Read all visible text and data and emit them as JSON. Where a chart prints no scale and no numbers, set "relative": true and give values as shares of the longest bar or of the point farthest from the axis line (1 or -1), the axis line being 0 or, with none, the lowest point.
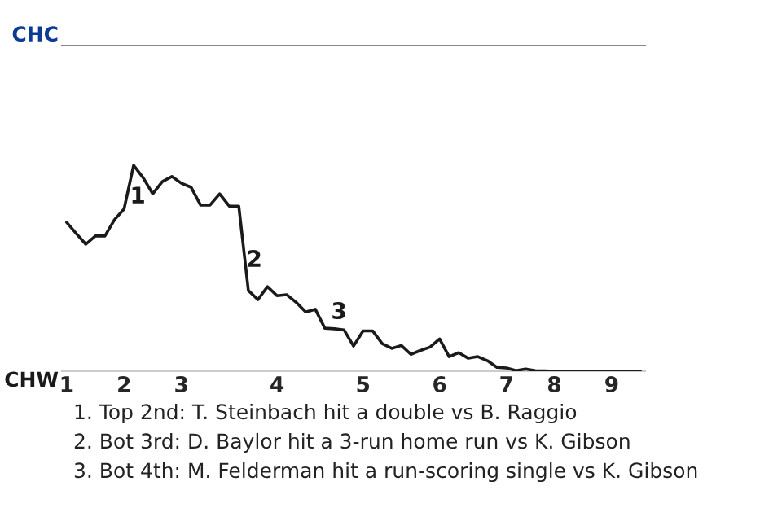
{
  "chart_data": {
    "type": "line",
    "relative": true,
    "categories": [
      "1",
      null,
      null,
      null,
      null,
      null,
      "2",
      null,
      null,
      null,
      null,
      null,
      "3",
      null,
      null,
      null,
      null,
      null,
      null,
      null,
      null,
      null,
      "4",
      null,
      null,
      null,
      null,
      null,
      null,
      null,
      null,
      "5",
      null,
      null,
      null,
      null,
      null,
      null,
      null,
      "6",
      null,
      null,
      null,
      null,
      null,
      null,
      "7",
      null,
      null,
      null,
      null,
      "8",
      null,
      null,
      null,
      null,
      null,
      "9",
      null,
      null,
      null
    ],
    "marker": "none",
    "line_style": "solid",
    "series": [
      {
        "color": "#1a1a1a",
        "values": [
          0.723,
          0.669,
          0.617,
          0.657,
          0.657,
          0.736,
          0.788,
          1,
          0.94,
          0.862,
          0.921,
          0.946,
          0.913,
          0.894,
          0.807,
          0.807,
          0.862,
          0.802,
          0.802,
          0.392,
          0.348,
          0.411,
          0.367,
          0.372,
          0.335,
          0.288,
          0.301,
          0.209,
          0.206,
          0.201,
          0.122,
          0.196,
          0.196,
          0.134,
          0.111,
          0.125,
          0.082,
          0.101,
          0.117,
          0.157,
          0.071,
          0.09,
          0.063,
          0.071,
          0.051,
          0.019,
          0.016,
          0.003,
          0.011,
          0.003,
          0.002,
          0,
          0,
          0,
          0,
          0,
          0,
          0,
          0,
          0,
          0
        ]
      }
    ],
    "annotations": [
      "CHC",
      "CHW",
      "1",
      "2",
      "3",
      "1. Top 2nd: T. Steinbach hit a double vs B. Raggio",
      "2. Bot 3rd: D. Baylor hit a 3-run home run vs K. Gibson",
      "3. Bot 4th: M. Felderman hit a run-scoring single vs K. Gibson"
    ]
  }
}
